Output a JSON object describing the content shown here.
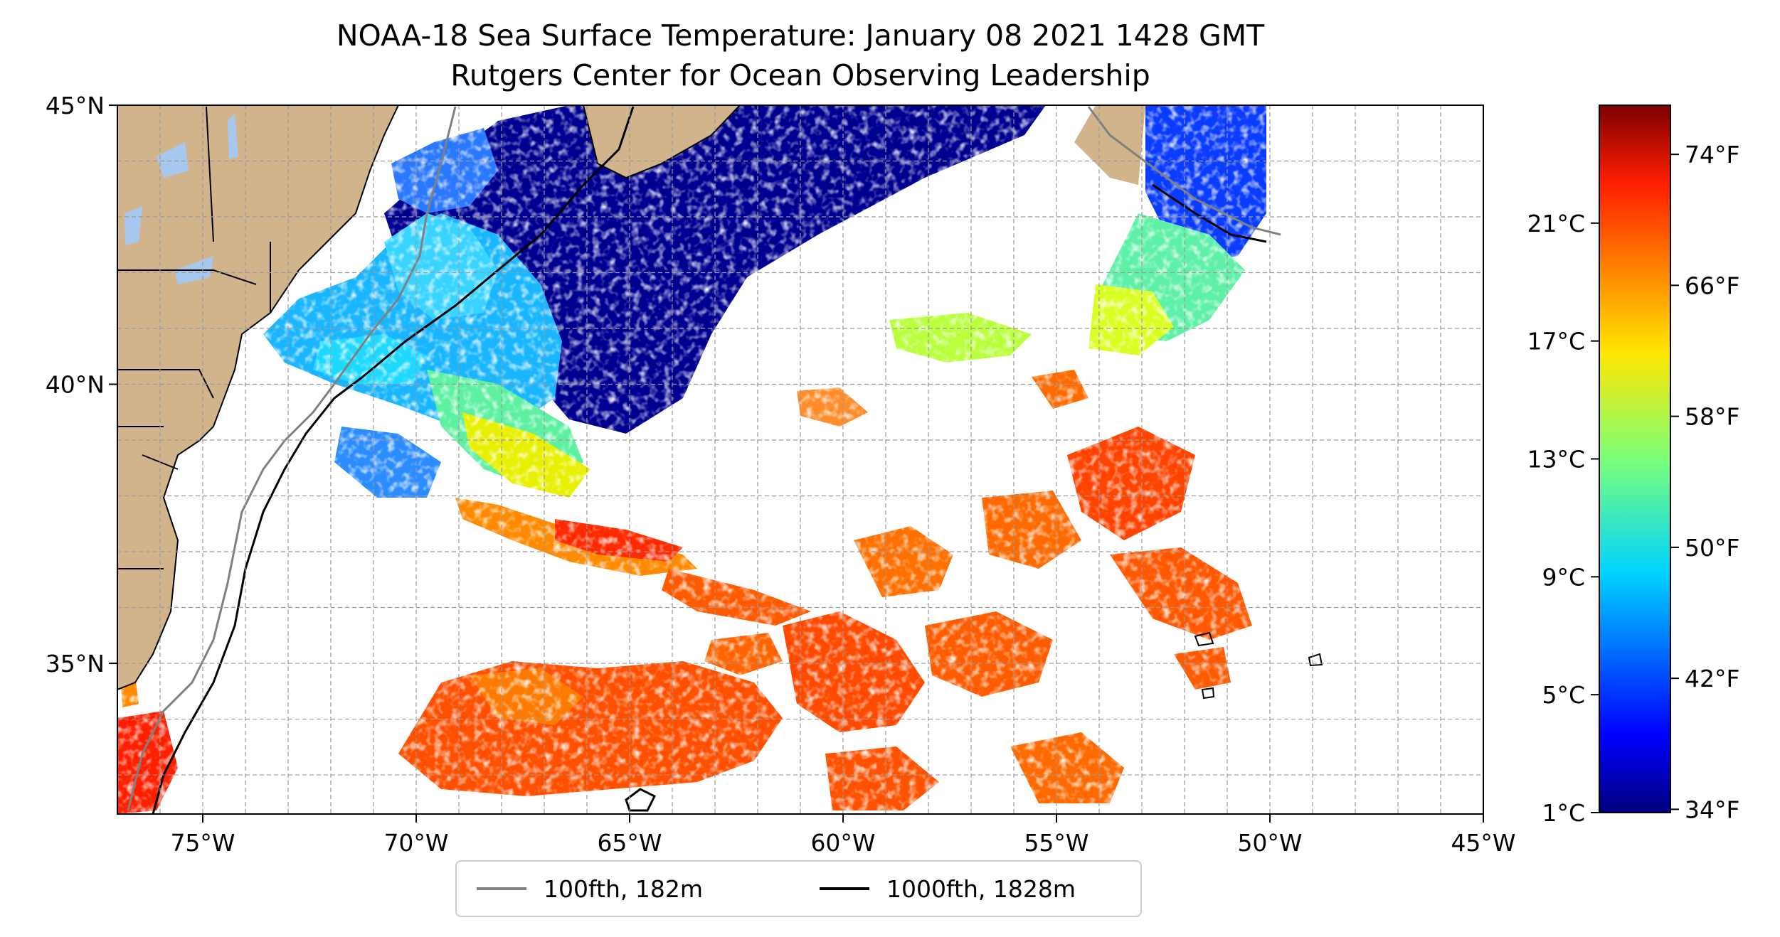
{
  "title": {
    "line1": "NOAA-18 Sea Surface Temperature: January 08 2021 1428 GMT",
    "line2": "Rutgers Center for Ocean Observing Leadership"
  },
  "map": {
    "lon_range": [
      -77,
      -45
    ],
    "lat_range": [
      32.3,
      45
    ],
    "lon_ticks": [
      {
        "value": -75,
        "label": "75°W"
      },
      {
        "value": -70,
        "label": "70°W"
      },
      {
        "value": -65,
        "label": "65°W"
      },
      {
        "value": -60,
        "label": "60°W"
      },
      {
        "value": -55,
        "label": "55°W"
      },
      {
        "value": -50,
        "label": "50°W"
      },
      {
        "value": -45,
        "label": "45°W"
      }
    ],
    "lat_ticks": [
      {
        "value": 45,
        "label": "45°N"
      },
      {
        "value": 40,
        "label": "40°N"
      },
      {
        "value": 35,
        "label": "35°N"
      }
    ],
    "grid": true,
    "colors": {
      "land": "#d2b48c",
      "lakes": "#a6c8ee",
      "no_data": "#ffffff",
      "isobath_100": "#808080",
      "isobath_1000": "#000000"
    }
  },
  "colorbar": {
    "colormap": "jet",
    "range_c": [
      1,
      25
    ],
    "celsius_ticks": [
      {
        "value": 1,
        "label": "1°C"
      },
      {
        "value": 5,
        "label": "5°C"
      },
      {
        "value": 9,
        "label": "9°C"
      },
      {
        "value": 13,
        "label": "13°C"
      },
      {
        "value": 17,
        "label": "17°C"
      },
      {
        "value": 21,
        "label": "21°C"
      }
    ],
    "fahrenheit_ticks": [
      {
        "value": 34,
        "label": "34°F"
      },
      {
        "value": 42,
        "label": "42°F"
      },
      {
        "value": 50,
        "label": "50°F"
      },
      {
        "value": 58,
        "label": "58°F"
      },
      {
        "value": 66,
        "label": "66°F"
      },
      {
        "value": 74,
        "label": "74°F"
      }
    ]
  },
  "legend": {
    "placement": "bottom-center",
    "items": [
      {
        "label": "100fth, 182m",
        "color": "#808080"
      },
      {
        "label": "1000fth, 1828m",
        "color": "#000000"
      }
    ]
  }
}
